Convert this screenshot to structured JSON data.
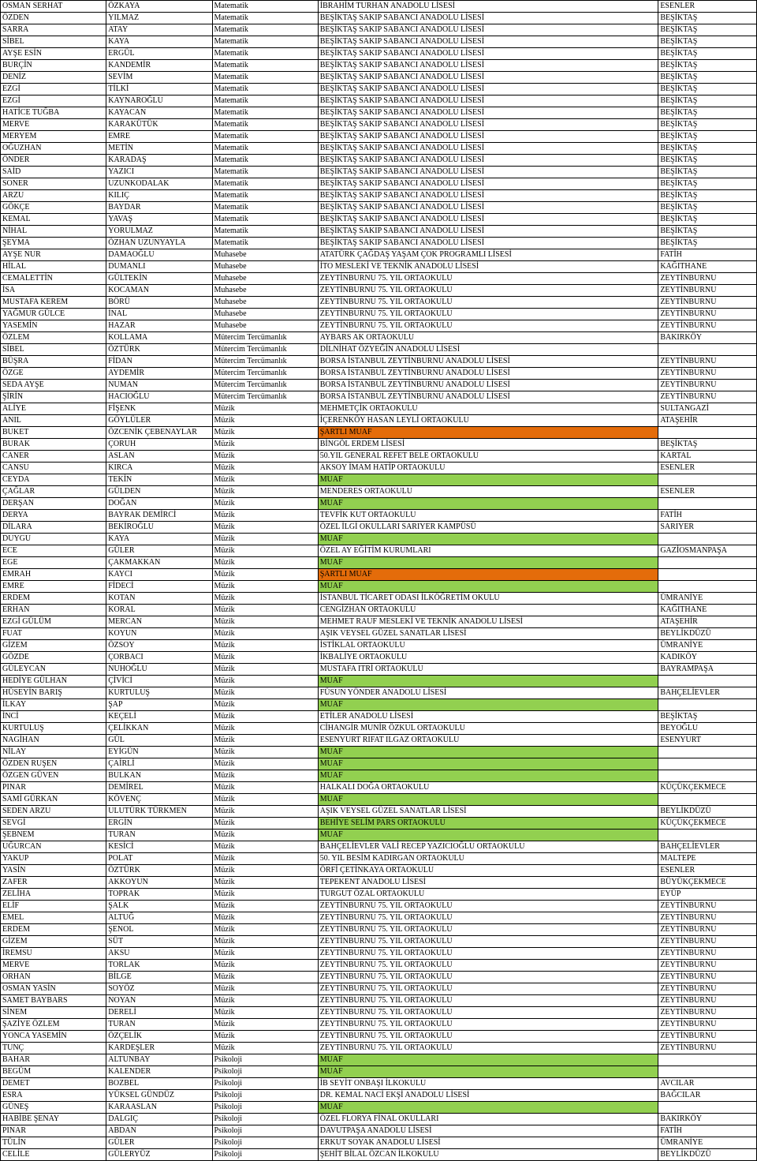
{
  "colors": {
    "muaf": "#92d050",
    "sartliMuaf": "#e46c0a",
    "behiye": "#92d050"
  },
  "rows": [
    {
      "fn": "OSMAN SERHAT",
      "ln": "ÖZKAYA",
      "br": "Matematik",
      "sc": "İBRAHİM TURHAN ANADOLU LİSESİ",
      "di": "ESENLER"
    },
    {
      "fn": "ÖZDEN",
      "ln": "YILMAZ",
      "br": "Matematik",
      "sc": "BEŞİKTAŞ SAKIP SABANCI ANADOLU LİSESİ",
      "di": "BEŞİKTAŞ"
    },
    {
      "fn": "SARRA",
      "ln": "ATAY",
      "br": "Matematik",
      "sc": "BEŞİKTAŞ SAKIP SABANCI ANADOLU LİSESİ",
      "di": "BEŞİKTAŞ"
    },
    {
      "fn": "SİBEL",
      "ln": "KAYA",
      "br": "Matematik",
      "sc": "BEŞİKTAŞ SAKIP SABANCI ANADOLU LİSESİ",
      "di": "BEŞİKTAŞ"
    },
    {
      "fn": "AYŞE ESİN",
      "ln": "ERGÜL",
      "br": "Matematik",
      "sc": "BEŞİKTAŞ SAKIP SABANCI ANADOLU LİSESİ",
      "di": "BEŞİKTAŞ"
    },
    {
      "fn": "BURÇİN",
      "ln": "KANDEMİR",
      "br": "Matematik",
      "sc": "BEŞİKTAŞ SAKIP SABANCI ANADOLU LİSESİ",
      "di": "BEŞİKTAŞ"
    },
    {
      "fn": "DENİZ",
      "ln": "SEVİM",
      "br": "Matematik",
      "sc": "BEŞİKTAŞ SAKIP SABANCI ANADOLU LİSESİ",
      "di": "BEŞİKTAŞ"
    },
    {
      "fn": "EZGİ",
      "ln": "TİLKİ",
      "br": "Matematik",
      "sc": "BEŞİKTAŞ SAKIP SABANCI ANADOLU LİSESİ",
      "di": "BEŞİKTAŞ"
    },
    {
      "fn": "EZGİ",
      "ln": "KAYNAROĞLU",
      "br": "Matematik",
      "sc": "BEŞİKTAŞ SAKIP SABANCI ANADOLU LİSESİ",
      "di": "BEŞİKTAŞ"
    },
    {
      "fn": "HATİCE TUĞBA",
      "ln": "KAYACAN",
      "br": "Matematik",
      "sc": "BEŞİKTAŞ SAKIP SABANCI ANADOLU LİSESİ",
      "di": "BEŞİKTAŞ"
    },
    {
      "fn": "MERVE",
      "ln": "KARAKÜTÜK",
      "br": "Matematik",
      "sc": "BEŞİKTAŞ SAKIP SABANCI ANADOLU LİSESİ",
      "di": "BEŞİKTAŞ"
    },
    {
      "fn": "MERYEM",
      "ln": "EMRE",
      "br": "Matematik",
      "sc": "BEŞİKTAŞ SAKIP SABANCI ANADOLU LİSESİ",
      "di": "BEŞİKTAŞ"
    },
    {
      "fn": "OĞUZHAN",
      "ln": "METİN",
      "br": "Matematik",
      "sc": "BEŞİKTAŞ SAKIP SABANCI ANADOLU LİSESİ",
      "di": "BEŞİKTAŞ"
    },
    {
      "fn": "ÖNDER",
      "ln": "KARADAŞ",
      "br": "Matematik",
      "sc": "BEŞİKTAŞ SAKIP SABANCI ANADOLU LİSESİ",
      "di": "BEŞİKTAŞ"
    },
    {
      "fn": "SAİD",
      "ln": "YAZICI",
      "br": "Matematik",
      "sc": "BEŞİKTAŞ SAKIP SABANCI ANADOLU LİSESİ",
      "di": "BEŞİKTAŞ"
    },
    {
      "fn": "SONER",
      "ln": "UZUNKODALAK",
      "br": "Matematik",
      "sc": "BEŞİKTAŞ SAKIP SABANCI ANADOLU LİSESİ",
      "di": "BEŞİKTAŞ"
    },
    {
      "fn": "ARZU",
      "ln": "KILIÇ",
      "br": "Matematik",
      "sc": "BEŞİKTAŞ SAKIP SABANCI ANADOLU LİSESİ",
      "di": "BEŞİKTAŞ"
    },
    {
      "fn": "GÖKÇE",
      "ln": "BAYDAR",
      "br": "Matematik",
      "sc": "BEŞİKTAŞ SAKIP SABANCI ANADOLU LİSESİ",
      "di": "BEŞİKTAŞ"
    },
    {
      "fn": "KEMAL",
      "ln": "YAVAŞ",
      "br": "Matematik",
      "sc": "BEŞİKTAŞ SAKIP SABANCI ANADOLU LİSESİ",
      "di": "BEŞİKTAŞ"
    },
    {
      "fn": "NİHAL",
      "ln": "YORULMAZ",
      "br": "Matematik",
      "sc": "BEŞİKTAŞ SAKIP SABANCI ANADOLU LİSESİ",
      "di": "BEŞİKTAŞ"
    },
    {
      "fn": "ŞEYMA",
      "ln": "ÖZHAN UZUNYAYLA",
      "br": "Matematik",
      "sc": "BEŞİKTAŞ SAKIP SABANCI ANADOLU LİSESİ",
      "di": "BEŞİKTAŞ"
    },
    {
      "fn": "AYŞE NUR",
      "ln": "DAMAOĞLU",
      "br": "Muhasebe",
      "sc": "ATATÜRK ÇAĞDAŞ YAŞAM ÇOK PROGRAMLI LİSESİ",
      "di": "FATİH"
    },
    {
      "fn": "HİLAL",
      "ln": "DUMANLI",
      "br": "Muhasebe",
      "sc": "İTO MESLEKİ VE TEKNİK ANADOLU LİSESİ",
      "di": "KAĞITHANE"
    },
    {
      "fn": "CEMALETTİN",
      "ln": "GÜLTEKİN",
      "br": "Muhasebe",
      "sc": "ZEYTİNBURNU 75. YIL ORTAOKULU",
      "di": "ZEYTİNBURNU"
    },
    {
      "fn": "İSA",
      "ln": "KOCAMAN",
      "br": "Muhasebe",
      "sc": "ZEYTİNBURNU 75. YIL ORTAOKULU",
      "di": "ZEYTİNBURNU"
    },
    {
      "fn": "MUSTAFA KEREM",
      "ln": "BÖRÜ",
      "br": "Muhasebe",
      "sc": "ZEYTİNBURNU 75. YIL ORTAOKULU",
      "di": "ZEYTİNBURNU"
    },
    {
      "fn": "YAĞMUR GÜLCE",
      "ln": "İNAL",
      "br": "Muhasebe",
      "sc": "ZEYTİNBURNU 75. YIL ORTAOKULU",
      "di": "ZEYTİNBURNU"
    },
    {
      "fn": "YASEMİN",
      "ln": "HAZAR",
      "br": "Muhasebe",
      "sc": "ZEYTİNBURNU 75. YIL ORTAOKULU",
      "di": "ZEYTİNBURNU"
    },
    {
      "fn": "ÖZLEM",
      "ln": "KOLLAMA",
      "br": "Mütercim Tercümanlık",
      "sc": "AYBARS AK ORTAOKULU",
      "di": "BAKIRKÖY"
    },
    {
      "fn": "SİBEL",
      "ln": "ÖZTÜRK",
      "br": "Mütercim Tercümanlık",
      "sc": "DİLNİHAT ÖZYEĞİN ANADOLU LİSESİ",
      "di": ""
    },
    {
      "fn": "BÜŞRA",
      "ln": "FİDAN",
      "br": "Mütercim Tercümanlık",
      "sc": "BORSA İSTANBUL ZEYTİNBURNU ANADOLU LİSESİ",
      "di": "ZEYTİNBURNU"
    },
    {
      "fn": "ÖZGE",
      "ln": "AYDEMİR",
      "br": "Mütercim Tercümanlık",
      "sc": "BORSA İSTANBUL ZEYTİNBURNU ANADOLU LİSESİ",
      "di": "ZEYTİNBURNU"
    },
    {
      "fn": "SEDA AYŞE",
      "ln": "NUMAN",
      "br": "Mütercim Tercümanlık",
      "sc": "BORSA İSTANBUL ZEYTİNBURNU ANADOLU LİSESİ",
      "di": "ZEYTİNBURNU"
    },
    {
      "fn": "ŞİRİN",
      "ln": "HACIOĞLU",
      "br": "Mütercim Tercümanlık",
      "sc": "BORSA İSTANBUL ZEYTİNBURNU ANADOLU LİSESİ",
      "di": "ZEYTİNBURNU"
    },
    {
      "fn": "ALİYE",
      "ln": "FİŞENK",
      "br": "Müzik",
      "sc": "MEHMETÇİK ORTAOKULU",
      "di": "SULTANGAZİ"
    },
    {
      "fn": "ANIL",
      "ln": "GÖYLÜLER",
      "br": "Müzik",
      "sc": "İÇERENKÖY HASAN LEYLİ ORTAOKULU",
      "di": "ATAŞEHİR"
    },
    {
      "fn": "BUKET",
      "ln": "ÖZCENİK ÇEBENAYLAR",
      "br": "Müzik",
      "sc": "ŞARTLI MUAF",
      "di": "",
      "hl": "sartliMuaf"
    },
    {
      "fn": "BURAK",
      "ln": "ÇORUH",
      "br": "Müzik",
      "sc": "BİNGÖL ERDEM LİSESİ",
      "di": "BEŞİKTAŞ"
    },
    {
      "fn": "CANER",
      "ln": "ASLAN",
      "br": "Müzik",
      "sc": "50.YIL GENERAL REFET BELE ORTAOKULU",
      "di": "KARTAL"
    },
    {
      "fn": "CANSU",
      "ln": "KIRCA",
      "br": "Müzik",
      "sc": "AKSOY İMAM HATİP ORTAOKULU",
      "di": "ESENLER"
    },
    {
      "fn": "CEYDA",
      "ln": "TEKİN",
      "br": "Müzik",
      "sc": "MUAF",
      "di": "",
      "hl": "muaf"
    },
    {
      "fn": "ÇAĞLAR",
      "ln": "GÜLDEN",
      "br": "Müzik",
      "sc": "MENDERES ORTAOKULU",
      "di": "ESENLER"
    },
    {
      "fn": "DERŞAN",
      "ln": "DOĞAN",
      "br": "Müzik",
      "sc": "MUAF",
      "di": "",
      "hl": "muaf"
    },
    {
      "fn": "DERYA",
      "ln": "BAYRAK DEMİRCİ",
      "br": "Müzik",
      "sc": "TEVFİK KUT ORTAOKULU",
      "di": "FATİH"
    },
    {
      "fn": "DİLARA",
      "ln": "BEKİROĞLU",
      "br": "Müzik",
      "sc": "ÖZEL İLGİ OKULLARI SARIYER KAMPÜSÜ",
      "di": "SARIYER"
    },
    {
      "fn": "DUYGU",
      "ln": "KAYA",
      "br": "Müzik",
      "sc": "MUAF",
      "di": "",
      "hl": "muaf"
    },
    {
      "fn": "ECE",
      "ln": "GÜLER",
      "br": "Müzik",
      "sc": "ÖZEL AY EĞİTİM KURUMLARI",
      "di": "GAZİOSMANPAŞA"
    },
    {
      "fn": "EGE",
      "ln": "ÇAKMAKKAN",
      "br": "Müzik",
      "sc": "MUAF",
      "di": "",
      "hl": "muaf"
    },
    {
      "fn": "EMRAH",
      "ln": "KAYCI",
      "br": "Müzik",
      "sc": "ŞARTLI MUAF",
      "di": "",
      "hl": "sartliMuaf"
    },
    {
      "fn": "EMRE",
      "ln": "FİDECİ",
      "br": "Müzik",
      "sc": "MUAF",
      "di": "",
      "hl": "muaf"
    },
    {
      "fn": "ERDEM",
      "ln": "KOTAN",
      "br": "Müzik",
      "sc": "İSTANBUL TİCARET ODASI İLKÖĞRETİM OKULU",
      "di": "ÜMRANİYE"
    },
    {
      "fn": "ERHAN",
      "ln": "KORAL",
      "br": "Müzik",
      "sc": "CENGİZHAN ORTAOKULU",
      "di": "KAĞITHANE"
    },
    {
      "fn": "EZGİ GÜLÜM",
      "ln": "MERCAN",
      "br": "Müzik",
      "sc": "MEHMET RAUF MESLEKİ VE TEKNİK ANADOLU LİSESİ",
      "di": "ATAŞEHİR"
    },
    {
      "fn": "FUAT",
      "ln": "KOYUN",
      "br": "Müzik",
      "sc": "AŞIK VEYSEL GÜZEL SANATLAR LİSESİ",
      "di": "BEYLİKDÜZÜ"
    },
    {
      "fn": "GİZEM",
      "ln": "ÖZSOY",
      "br": "Müzik",
      "sc": "İSTİKLAL ORTAOKULU",
      "di": "ÜMRANİYE"
    },
    {
      "fn": "GÖZDE",
      "ln": "ÇORBACI",
      "br": "Müzik",
      "sc": "İKBALİYE ORTAOKULU",
      "di": "KADIKÖY"
    },
    {
      "fn": "GÜLEYCAN",
      "ln": "NUHOĞLU",
      "br": "Müzik",
      "sc": "MUSTAFA ITRİ ORTAOKULU",
      "di": "BAYRAMPAŞA"
    },
    {
      "fn": "HEDİYE GÜLHAN",
      "ln": "ÇİVİCİ",
      "br": "Müzik",
      "sc": "MUAF",
      "di": "",
      "hl": "muaf"
    },
    {
      "fn": "HÜSEYİN BARIŞ",
      "ln": "KURTULUŞ",
      "br": "Müzik",
      "sc": "FÜSUN YÖNDER ANADOLU LİSESİ",
      "di": "BAHÇELİEVLER"
    },
    {
      "fn": "İLKAY",
      "ln": "ŞAP",
      "br": "Müzik",
      "sc": "MUAF",
      "di": "",
      "hl": "muaf"
    },
    {
      "fn": "İNCİ",
      "ln": "KEÇELİ",
      "br": "Müzik",
      "sc": "ETİLER ANADOLU LİSESİ",
      "di": "BEŞİKTAŞ"
    },
    {
      "fn": "KURTULUŞ",
      "ln": "ÇELİKKAN",
      "br": "Müzik",
      "sc": "CİHANGİR MUNİR ÖZKUL ORTAOKULU",
      "di": "BEYOĞLU"
    },
    {
      "fn": "NAGİHAN",
      "ln": "GÜL",
      "br": "Müzik",
      "sc": "ESENYURT RIFAT ILGAZ ORTAOKULU",
      "di": "ESENYURT"
    },
    {
      "fn": "NİLAY",
      "ln": "EYİGÜN",
      "br": "Müzik",
      "sc": "MUAF",
      "di": "",
      "hl": "muaf"
    },
    {
      "fn": "ÖZDEN RUŞEN",
      "ln": "ÇAİRLİ",
      "br": "Müzik",
      "sc": "MUAF",
      "di": "",
      "hl": "muaf"
    },
    {
      "fn": "ÖZGEN GÜVEN",
      "ln": "BULKAN",
      "br": "Müzik",
      "sc": "MUAF",
      "di": "",
      "hl": "muaf"
    },
    {
      "fn": "PINAR",
      "ln": "DEMİREL",
      "br": "Müzik",
      "sc": "HALKALI DOĞA ORTAOKULU",
      "di": "KÜÇÜKÇEKMECE"
    },
    {
      "fn": "SAMİ GÜRKAN",
      "ln": "KÖVENÇ",
      "br": "Müzik",
      "sc": "MUAF",
      "di": "",
      "hl": "muaf"
    },
    {
      "fn": "SEDEN ARZU",
      "ln": "ULUTÜRK TÜRKMEN",
      "br": "Müzik",
      "sc": "AŞIK VEYSEL GÜZEL SANATLAR LİSESİ",
      "di": "BEYLİKDÜZÜ"
    },
    {
      "fn": "SEVGİ",
      "ln": "ERGİN",
      "br": "Müzik",
      "sc": "BEHİYE SELİM PARS ORTAOKULU",
      "di": "KÜÇÜKÇEKMECE",
      "hl": "behiye"
    },
    {
      "fn": "ŞEBNEM",
      "ln": "TURAN",
      "br": "Müzik",
      "sc": "MUAF",
      "di": "",
      "hl": "muaf"
    },
    {
      "fn": "UĞURCAN",
      "ln": "KESİCİ",
      "br": "Müzik",
      "sc": "BAHÇELİEVLER VALİ RECEP YAZICIOĞLU ORTAOKULU",
      "di": "BAHÇELİEVLER"
    },
    {
      "fn": "YAKUP",
      "ln": "POLAT",
      "br": "Müzik",
      "sc": "50. YIL BESİM KADIRGAN ORTAOKULU",
      "di": "MALTEPE"
    },
    {
      "fn": "YASİN",
      "ln": "ÖZTÜRK",
      "br": "Müzik",
      "sc": "ÖRFİ ÇETİNKAYA ORTAOKULU",
      "di": "ESENLER"
    },
    {
      "fn": "ZAFER",
      "ln": "AKKOYUN",
      "br": "Müzik",
      "sc": "TEPEKENT ANADOLU LİSESİ",
      "di": "BÜYÜKÇEKMECE"
    },
    {
      "fn": "ZELİHA",
      "ln": "TOPRAK",
      "br": "Müzik",
      "sc": "TURGUT ÖZAL ORTAOKULU",
      "di": "EYÜP"
    },
    {
      "fn": "ELİF",
      "ln": "ŞALK",
      "br": "Müzik",
      "sc": "ZEYTİNBURNU 75. YIL ORTAOKULU",
      "di": "ZEYTİNBURNU"
    },
    {
      "fn": "EMEL",
      "ln": "ALTUĞ",
      "br": "Müzik",
      "sc": "ZEYTİNBURNU 75. YIL ORTAOKULU",
      "di": "ZEYTİNBURNU"
    },
    {
      "fn": "ERDEM",
      "ln": "ŞENOL",
      "br": "Müzik",
      "sc": "ZEYTİNBURNU 75. YIL ORTAOKULU",
      "di": "ZEYTİNBURNU"
    },
    {
      "fn": "GİZEM",
      "ln": "SÜT",
      "br": "Müzik",
      "sc": "ZEYTİNBURNU 75. YIL ORTAOKULU",
      "di": "ZEYTİNBURNU"
    },
    {
      "fn": "İREMSU",
      "ln": "AKSU",
      "br": "Müzik",
      "sc": "ZEYTİNBURNU 75. YIL ORTAOKULU",
      "di": "ZEYTİNBURNU"
    },
    {
      "fn": "MERVE",
      "ln": "TORLAK",
      "br": "Müzik",
      "sc": "ZEYTİNBURNU 75. YIL ORTAOKULU",
      "di": "ZEYTİNBURNU"
    },
    {
      "fn": "ORHAN",
      "ln": "BİLGE",
      "br": "Müzik",
      "sc": "ZEYTİNBURNU 75. YIL ORTAOKULU",
      "di": "ZEYTİNBURNU"
    },
    {
      "fn": "OSMAN YASİN",
      "ln": "SOYÖZ",
      "br": "Müzik",
      "sc": "ZEYTİNBURNU 75. YIL ORTAOKULU",
      "di": "ZEYTİNBURNU"
    },
    {
      "fn": "SAMET BAYBARS",
      "ln": "NOYAN",
      "br": "Müzik",
      "sc": "ZEYTİNBURNU 75. YIL ORTAOKULU",
      "di": "ZEYTİNBURNU"
    },
    {
      "fn": "SİNEM",
      "ln": "DERELİ",
      "br": "Müzik",
      "sc": "ZEYTİNBURNU 75. YIL ORTAOKULU",
      "di": "ZEYTİNBURNU"
    },
    {
      "fn": "ŞAZİYE ÖZLEM",
      "ln": "TURAN",
      "br": "Müzik",
      "sc": "ZEYTİNBURNU 75. YIL ORTAOKULU",
      "di": "ZEYTİNBURNU"
    },
    {
      "fn": "YONCA YASEMİN",
      "ln": "ÖZÇELİK",
      "br": "Müzik",
      "sc": "ZEYTİNBURNU 75. YIL ORTAOKULU",
      "di": "ZEYTİNBURNU"
    },
    {
      "fn": "TUNÇ",
      "ln": "KARDEŞLER",
      "br": "Müzik",
      "sc": "ZEYTİNBURNU 75. YIL ORTAOKULU",
      "di": "ZEYTİNBURNU"
    },
    {
      "fn": "BAHAR",
      "ln": "ALTUNBAY",
      "br": "Psikoloji",
      "sc": "MUAF",
      "di": "",
      "hl": "muaf"
    },
    {
      "fn": "BEGÜM",
      "ln": "KALENDER",
      "br": "Psikoloji",
      "sc": "MUAF",
      "di": "",
      "hl": "muaf"
    },
    {
      "fn": "DEMET",
      "ln": "BOZBEL",
      "br": "Psikoloji",
      "sc": "İB SEYİT ONBAŞI İLKOKULU",
      "di": "AVCILAR"
    },
    {
      "fn": "ESRA",
      "ln": "YÜKSEL GÜNDÜZ",
      "br": "Psikoloji",
      "sc": "DR. KEMAL NACİ EKŞİ ANADOLU LİSESİ",
      "di": "BAĞCILAR"
    },
    {
      "fn": "GÜNEŞ",
      "ln": "KARAASLAN",
      "br": "Psikoloji",
      "sc": "MUAF",
      "di": "",
      "hl": "muaf"
    },
    {
      "fn": "HABİBE ŞENAY",
      "ln": "DALGIÇ",
      "br": "Psikoloji",
      "sc": "ÖZEL FLORYA FİNAL OKULLARI",
      "di": "BAKIRKÖY"
    },
    {
      "fn": "PINAR",
      "ln": "ABDAN",
      "br": "Psikoloji",
      "sc": "DAVUTPAŞA ANADOLU LİSESİ",
      "di": "FATİH"
    },
    {
      "fn": "TÜLİN",
      "ln": "GÜLER",
      "br": "Psikoloji",
      "sc": "ERKUT SOYAK ANADOLU LİSESİ",
      "di": "ÜMRANİYE"
    },
    {
      "fn": "CELİLE",
      "ln": "GÜLERYÜZ",
      "br": "Psikoloji",
      "sc": "ŞEHİT BİLAL ÖZCAN İLKOKULU",
      "di": "BEYLİKDÜZÜ"
    }
  ]
}
